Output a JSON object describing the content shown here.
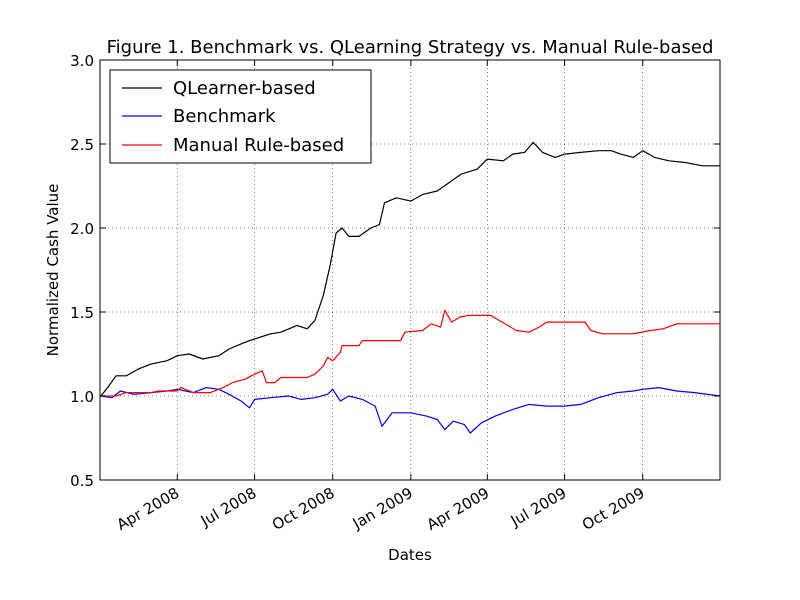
{
  "chart_data": {
    "type": "line",
    "title": "Figure 1. Benchmark vs. QLearning Strategy vs. Manual Rule-based",
    "xlabel": "Dates",
    "ylabel": "Normalized Cash Value",
    "xlim": [
      "2008-01-01",
      "2009-12-31"
    ],
    "ylim": [
      0.5,
      3.0
    ],
    "grid": true,
    "legend_position": "top-left",
    "y_ticks": [
      {
        "value": 0.5,
        "label": "0.5"
      },
      {
        "value": 1.0,
        "label": "1.0"
      },
      {
        "value": 1.5,
        "label": "1.5"
      },
      {
        "value": 2.0,
        "label": "2.0"
      },
      {
        "value": 2.5,
        "label": "2.5"
      },
      {
        "value": 3.0,
        "label": "3.0"
      }
    ],
    "x_ticks": [
      {
        "value": "2008-04-01",
        "label": "Apr 2008"
      },
      {
        "value": "2008-07-01",
        "label": "Jul 2008"
      },
      {
        "value": "2008-10-01",
        "label": "Oct 2008"
      },
      {
        "value": "2009-01-01",
        "label": "Jan 2009"
      },
      {
        "value": "2009-04-01",
        "label": "Apr 2009"
      },
      {
        "value": "2009-07-01",
        "label": "Jul 2009"
      },
      {
        "value": "2009-10-01",
        "label": "Oct 2009"
      }
    ],
    "series": [
      {
        "name": "QLearner-based",
        "color": "#000000",
        "points": [
          [
            "2008-01-02",
            1.0
          ],
          [
            "2008-01-10",
            1.05
          ],
          [
            "2008-01-20",
            1.12
          ],
          [
            "2008-02-01",
            1.12
          ],
          [
            "2008-02-15",
            1.16
          ],
          [
            "2008-03-01",
            1.19
          ],
          [
            "2008-03-20",
            1.21
          ],
          [
            "2008-04-01",
            1.24
          ],
          [
            "2008-04-15",
            1.25
          ],
          [
            "2008-05-01",
            1.22
          ],
          [
            "2008-05-20",
            1.24
          ],
          [
            "2008-06-01",
            1.28
          ],
          [
            "2008-06-20",
            1.32
          ],
          [
            "2008-07-01",
            1.34
          ],
          [
            "2008-07-20",
            1.37
          ],
          [
            "2008-08-01",
            1.38
          ],
          [
            "2008-08-20",
            1.42
          ],
          [
            "2008-09-01",
            1.4
          ],
          [
            "2008-09-10",
            1.45
          ],
          [
            "2008-09-20",
            1.6
          ],
          [
            "2008-09-28",
            1.78
          ],
          [
            "2008-10-05",
            1.97
          ],
          [
            "2008-10-12",
            2.0
          ],
          [
            "2008-10-20",
            1.95
          ],
          [
            "2008-11-01",
            1.95
          ],
          [
            "2008-11-15",
            2.0
          ],
          [
            "2008-11-25",
            2.02
          ],
          [
            "2008-12-01",
            2.15
          ],
          [
            "2008-12-15",
            2.18
          ],
          [
            "2009-01-01",
            2.16
          ],
          [
            "2009-01-15",
            2.2
          ],
          [
            "2009-02-01",
            2.22
          ],
          [
            "2009-02-15",
            2.27
          ],
          [
            "2009-03-01",
            2.32
          ],
          [
            "2009-03-20",
            2.35
          ],
          [
            "2009-04-01",
            2.41
          ],
          [
            "2009-04-20",
            2.4
          ],
          [
            "2009-05-01",
            2.44
          ],
          [
            "2009-05-15",
            2.45
          ],
          [
            "2009-05-25",
            2.51
          ],
          [
            "2009-06-05",
            2.45
          ],
          [
            "2009-06-20",
            2.42
          ],
          [
            "2009-07-01",
            2.44
          ],
          [
            "2009-07-20",
            2.45
          ],
          [
            "2009-08-10",
            2.46
          ],
          [
            "2009-08-25",
            2.46
          ],
          [
            "2009-09-05",
            2.44
          ],
          [
            "2009-09-20",
            2.42
          ],
          [
            "2009-10-01",
            2.46
          ],
          [
            "2009-10-15",
            2.42
          ],
          [
            "2009-11-01",
            2.4
          ],
          [
            "2009-11-20",
            2.39
          ],
          [
            "2009-12-10",
            2.37
          ],
          [
            "2009-12-31",
            2.37
          ]
        ]
      },
      {
        "name": "Benchmark",
        "color": "#0000ff",
        "points": [
          [
            "2008-01-02",
            1.0
          ],
          [
            "2008-01-15",
            0.99
          ],
          [
            "2008-01-25",
            1.03
          ],
          [
            "2008-02-10",
            1.01
          ],
          [
            "2008-03-01",
            1.02
          ],
          [
            "2008-03-20",
            1.03
          ],
          [
            "2008-04-01",
            1.04
          ],
          [
            "2008-04-20",
            1.02
          ],
          [
            "2008-05-05",
            1.05
          ],
          [
            "2008-05-20",
            1.04
          ],
          [
            "2008-06-01",
            1.01
          ],
          [
            "2008-06-15",
            0.97
          ],
          [
            "2008-06-25",
            0.93
          ],
          [
            "2008-07-01",
            0.98
          ],
          [
            "2008-07-20",
            0.99
          ],
          [
            "2008-08-10",
            1.0
          ],
          [
            "2008-08-25",
            0.98
          ],
          [
            "2008-09-10",
            0.99
          ],
          [
            "2008-09-25",
            1.01
          ],
          [
            "2008-10-01",
            1.04
          ],
          [
            "2008-10-10",
            0.97
          ],
          [
            "2008-10-20",
            1.0
          ],
          [
            "2008-11-05",
            0.98
          ],
          [
            "2008-11-20",
            0.94
          ],
          [
            "2008-11-28",
            0.82
          ],
          [
            "2008-12-10",
            0.9
          ],
          [
            "2009-01-01",
            0.9
          ],
          [
            "2009-01-20",
            0.88
          ],
          [
            "2009-02-01",
            0.86
          ],
          [
            "2009-02-10",
            0.8
          ],
          [
            "2009-02-20",
            0.85
          ],
          [
            "2009-03-05",
            0.83
          ],
          [
            "2009-03-12",
            0.78
          ],
          [
            "2009-03-25",
            0.84
          ],
          [
            "2009-04-10",
            0.88
          ],
          [
            "2009-05-01",
            0.92
          ],
          [
            "2009-05-20",
            0.95
          ],
          [
            "2009-06-10",
            0.94
          ],
          [
            "2009-07-01",
            0.94
          ],
          [
            "2009-07-20",
            0.95
          ],
          [
            "2009-08-10",
            0.99
          ],
          [
            "2009-09-01",
            1.02
          ],
          [
            "2009-09-20",
            1.03
          ],
          [
            "2009-10-01",
            1.04
          ],
          [
            "2009-10-20",
            1.05
          ],
          [
            "2009-11-10",
            1.03
          ],
          [
            "2009-12-01",
            1.02
          ],
          [
            "2009-12-31",
            1.0
          ]
        ]
      },
      {
        "name": "Manual Rule-based",
        "color": "#ff0000",
        "points": [
          [
            "2008-01-02",
            1.0
          ],
          [
            "2008-01-20",
            1.0
          ],
          [
            "2008-02-01",
            1.02
          ],
          [
            "2008-03-01",
            1.02
          ],
          [
            "2008-03-10",
            1.03
          ],
          [
            "2008-04-01",
            1.03
          ],
          [
            "2008-04-05",
            1.05
          ],
          [
            "2008-04-20",
            1.02
          ],
          [
            "2008-05-10",
            1.02
          ],
          [
            "2008-05-25",
            1.05
          ],
          [
            "2008-06-05",
            1.08
          ],
          [
            "2008-06-20",
            1.1
          ],
          [
            "2008-07-01",
            1.13
          ],
          [
            "2008-07-10",
            1.15
          ],
          [
            "2008-07-15",
            1.08
          ],
          [
            "2008-07-25",
            1.08
          ],
          [
            "2008-08-01",
            1.11
          ],
          [
            "2008-09-01",
            1.11
          ],
          [
            "2008-09-10",
            1.13
          ],
          [
            "2008-09-20",
            1.18
          ],
          [
            "2008-09-25",
            1.23
          ],
          [
            "2008-10-01",
            1.21
          ],
          [
            "2008-10-10",
            1.26
          ],
          [
            "2008-10-12",
            1.3
          ],
          [
            "2008-11-01",
            1.3
          ],
          [
            "2008-11-05",
            1.33
          ],
          [
            "2008-12-20",
            1.33
          ],
          [
            "2008-12-25",
            1.38
          ],
          [
            "2009-01-15",
            1.39
          ],
          [
            "2009-01-25",
            1.43
          ],
          [
            "2009-02-05",
            1.41
          ],
          [
            "2009-02-10",
            1.51
          ],
          [
            "2009-02-18",
            1.44
          ],
          [
            "2009-02-28",
            1.47
          ],
          [
            "2009-03-10",
            1.48
          ],
          [
            "2009-04-05",
            1.48
          ],
          [
            "2009-04-15",
            1.45
          ],
          [
            "2009-04-25",
            1.42
          ],
          [
            "2009-05-05",
            1.39
          ],
          [
            "2009-05-20",
            1.38
          ],
          [
            "2009-06-01",
            1.41
          ],
          [
            "2009-06-10",
            1.44
          ],
          [
            "2009-07-25",
            1.44
          ],
          [
            "2009-08-01",
            1.39
          ],
          [
            "2009-08-15",
            1.37
          ],
          [
            "2009-09-01",
            1.37
          ],
          [
            "2009-09-20",
            1.37
          ],
          [
            "2009-10-10",
            1.39
          ],
          [
            "2009-10-25",
            1.4
          ],
          [
            "2009-11-10",
            1.43
          ],
          [
            "2009-12-01",
            1.43
          ],
          [
            "2009-12-31",
            1.43
          ]
        ]
      }
    ]
  }
}
